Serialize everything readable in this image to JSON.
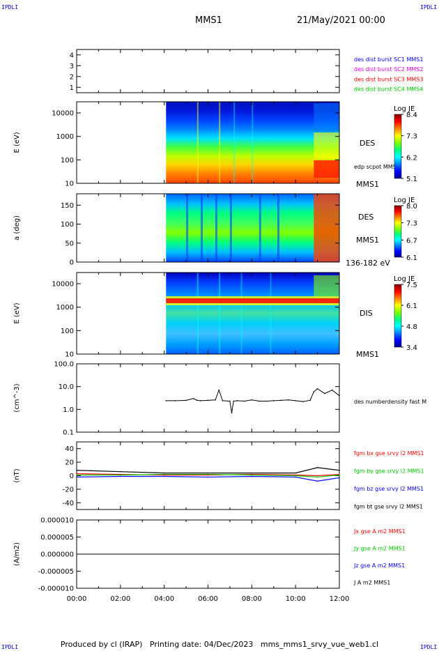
{
  "header": {
    "corner_label": "IPDLI",
    "spacecraft": "MMS1",
    "date_time": "21/May/2021 00:00"
  },
  "footer": {
    "text": "Produced by cl (IRAP)   Printing date: 04/Dec/2023   mms_mms1_srvy_vue_web1.cl"
  },
  "colors": {
    "blue": "#0000ff",
    "magenta": "#e600e6",
    "red": "#ff0000",
    "green": "#00c800",
    "black": "#000000"
  },
  "chart_data": [
    {
      "type": "line",
      "panel": "burst-indicator",
      "y_ticks": [
        "1",
        "2",
        "3",
        "4"
      ],
      "ylim": [
        0.5,
        4.5
      ],
      "legend": [
        {
          "name": "des dist burst SC1 MMS1",
          "color": "#0000ff"
        },
        {
          "name": "des dist burst SC2 MMS2",
          "color": "#e600e6"
        },
        {
          "name": "des dist burst SC3 MMS3",
          "color": "#ff0000"
        },
        {
          "name": "des dist burst SC4 MMS4",
          "color": "#00c800"
        }
      ]
    },
    {
      "type": "heatmap",
      "panel": "des-energy-spectrogram",
      "ylabel": "E (eV)",
      "y_ticks": [
        "10",
        "100",
        "1000",
        "10000"
      ],
      "ylim": [
        10,
        30000
      ],
      "yscale": "log",
      "data_start": "04:05",
      "right_labels": [
        "DES",
        "MMS1"
      ],
      "overlay_label": "edp scpot MMS1",
      "colorbar": {
        "title": "Log JE",
        "ticks": [
          "8.4",
          "7.3",
          "6.2",
          "5.1"
        ],
        "range": [
          5.1,
          8.4
        ]
      }
    },
    {
      "type": "heatmap",
      "panel": "des-pitch-angle",
      "ylabel": "a (deg)",
      "y_ticks": [
        "0",
        "50",
        "100",
        "150"
      ],
      "ylim": [
        0,
        180
      ],
      "data_start": "04:05",
      "right_labels": [
        "DES",
        "MMS1",
        "136-182 eV"
      ],
      "colorbar": {
        "title": "Log JE",
        "ticks": [
          "8.0",
          "7.3",
          "6.7",
          "6.1"
        ],
        "range": [
          6.1,
          8.0
        ]
      }
    },
    {
      "type": "heatmap",
      "panel": "dis-energy-spectrogram",
      "ylabel": "E (eV)",
      "y_ticks": [
        "10",
        "100",
        "1000",
        "10000"
      ],
      "ylim": [
        10,
        30000
      ],
      "yscale": "log",
      "data_start": "04:05",
      "right_labels": [
        "DIS",
        "MMS1"
      ],
      "colorbar": {
        "title": "Log JE",
        "ticks": [
          "7.5",
          "6.1",
          "4.8",
          "3.4"
        ],
        "range": [
          3.4,
          7.5
        ]
      }
    },
    {
      "type": "line",
      "panel": "number-density",
      "ylabel": "(cm^-3)",
      "y_ticks": [
        "0.1",
        "1.0",
        "10.0",
        "100.0"
      ],
      "ylim": [
        0.1,
        100
      ],
      "yscale": "log",
      "series": [
        {
          "name": "des numberdensity fast M",
          "color": "#000000",
          "x": [
            "04:05",
            "04:30",
            "05:00",
            "05:20",
            "05:30",
            "05:40",
            "06:00",
            "06:20",
            "06:30",
            "06:40",
            "07:00",
            "07:05",
            "07:10",
            "07:20",
            "07:40",
            "08:00",
            "08:20",
            "08:40",
            "09:00",
            "09:20",
            "09:40",
            "10:00",
            "10:20",
            "10:40",
            "10:50",
            "11:00",
            "11:20",
            "11:40",
            "12:00"
          ],
          "y": [
            2.4,
            2.4,
            2.5,
            3.0,
            2.5,
            2.4,
            2.5,
            2.6,
            7.0,
            2.4,
            2.3,
            0.7,
            2.3,
            2.4,
            2.3,
            2.6,
            2.3,
            2.3,
            2.4,
            2.5,
            2.6,
            2.4,
            2.2,
            2.5,
            6.0,
            8.0,
            5.0,
            7.0,
            4.0
          ]
        }
      ]
    },
    {
      "type": "line",
      "panel": "magnetic-field",
      "ylabel": "(nT)",
      "y_ticks": [
        "-40",
        "-20",
        "0",
        "20",
        "40"
      ],
      "ylim": [
        -50,
        50
      ],
      "series": [
        {
          "name": "fgm bx gse srvy l2 MMS1",
          "color": "#ff0000",
          "x": [
            "00:00",
            "02:00",
            "04:00",
            "06:00",
            "08:00",
            "10:00",
            "11:00",
            "12:00"
          ],
          "y": [
            3,
            2,
            1,
            1,
            2,
            1,
            0,
            2
          ]
        },
        {
          "name": "fgm by gse srvy l2 MMS1",
          "color": "#00c800",
          "x": [
            "00:00",
            "02:00",
            "04:00",
            "06:00",
            "08:00",
            "10:00",
            "11:00",
            "12:00"
          ],
          "y": [
            1,
            1,
            2,
            2,
            1,
            0,
            -2,
            1
          ]
        },
        {
          "name": "fgm bz gse srvy l2 MMS1",
          "color": "#0000ff",
          "x": [
            "00:00",
            "02:00",
            "04:00",
            "06:00",
            "08:00",
            "10:00",
            "11:00",
            "12:00"
          ],
          "y": [
            -2,
            -1,
            -1,
            -2,
            -1,
            -2,
            -8,
            -3
          ]
        },
        {
          "name": "fgm bt gse srvy l2 MMS1",
          "color": "#000000",
          "x": [
            "00:00",
            "02:00",
            "04:00",
            "06:00",
            "08:00",
            "10:00",
            "11:00",
            "12:00"
          ],
          "y": [
            8,
            6,
            4,
            4,
            4,
            4,
            12,
            8
          ]
        }
      ]
    },
    {
      "type": "line",
      "panel": "current-density",
      "ylabel": "(A/m2)",
      "y_ticks": [
        "-0.000010",
        "-0.000005",
        "0.000000",
        "0.000005",
        "0.000010"
      ],
      "ylim": [
        -1e-05,
        1e-05
      ],
      "series": [
        {
          "name": "Jx gse A m2 MMS1",
          "color": "#ff0000",
          "x": [
            "00:00",
            "12:00"
          ],
          "y": [
            0,
            0
          ]
        },
        {
          "name": "Jy gse A m2 MMS1",
          "color": "#00c800",
          "x": [
            "00:00",
            "12:00"
          ],
          "y": [
            0,
            0
          ]
        },
        {
          "name": "Jz gse A m2 MMS1",
          "color": "#0000ff",
          "x": [
            "00:00",
            "12:00"
          ],
          "y": [
            0,
            0
          ]
        },
        {
          "name": "J A m2 MMS1",
          "color": "#000000",
          "x": [
            "00:00",
            "12:00"
          ],
          "y": [
            0,
            0
          ]
        }
      ]
    }
  ],
  "x_axis": {
    "ticks": [
      "00:00",
      "02:00",
      "04:00",
      "06:00",
      "08:00",
      "10:00",
      "12:00"
    ],
    "range": [
      "00:00",
      "12:00"
    ]
  }
}
